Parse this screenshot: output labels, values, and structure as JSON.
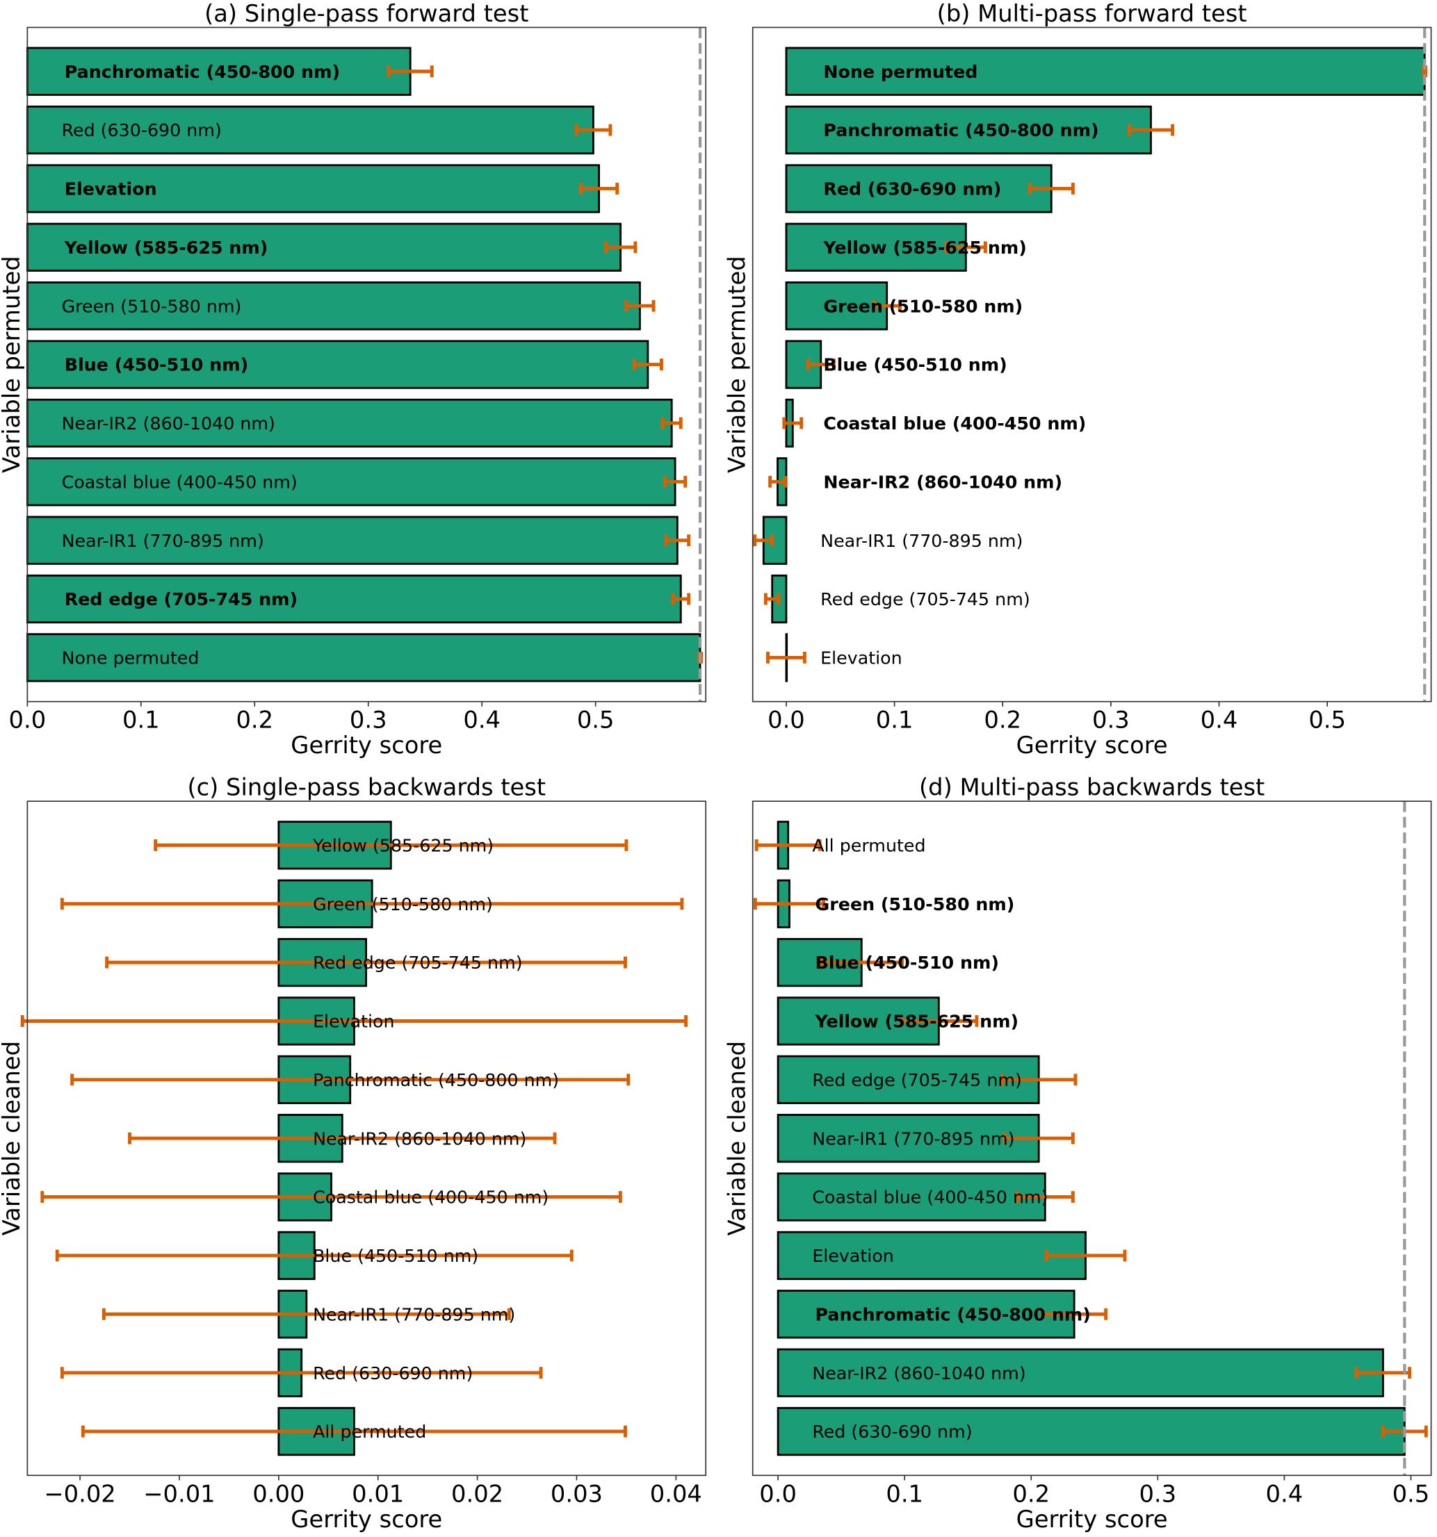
{
  "colors": {
    "bar": "#1b9e77",
    "error": "#d95f02",
    "reference": "#999999",
    "edge": "#000000"
  },
  "chart_data": [
    {
      "type": "bar",
      "orientation": "horizontal",
      "title": "(a) Single-pass forward test",
      "xlabel": "Gerrity score",
      "ylabel": "Variable permuted",
      "xlim": [
        0.0,
        0.597
      ],
      "reference_line": 0.592,
      "xticks": [
        0.0,
        0.1,
        0.2,
        0.3,
        0.4,
        0.5
      ],
      "xtick_labels": [
        "0.0",
        "0.1",
        "0.2",
        "0.3",
        "0.4",
        "0.5"
      ],
      "bars": [
        {
          "label": "Panchromatic (450-800 nm)",
          "value": 0.337,
          "err": 0.019,
          "bold": true
        },
        {
          "label": "Red (630-690 nm)",
          "value": 0.498,
          "err": 0.015,
          "bold": false
        },
        {
          "label": "Elevation",
          "value": 0.503,
          "err": 0.016,
          "bold": true
        },
        {
          "label": "Yellow (585-625 nm)",
          "value": 0.522,
          "err": 0.013,
          "bold": true
        },
        {
          "label": "Green (510-580 nm)",
          "value": 0.539,
          "err": 0.012,
          "bold": false
        },
        {
          "label": "Blue (450-510 nm)",
          "value": 0.546,
          "err": 0.012,
          "bold": true
        },
        {
          "label": "Near-IR2 (860-1040 nm)",
          "value": 0.567,
          "err": 0.008,
          "bold": false
        },
        {
          "label": "Coastal blue (400-450 nm)",
          "value": 0.57,
          "err": 0.009,
          "bold": false
        },
        {
          "label": "Near-IR1 (770-895 nm)",
          "value": 0.572,
          "err": 0.01,
          "bold": false
        },
        {
          "label": "Red edge (705-745 nm)",
          "value": 0.575,
          "err": 0.007,
          "bold": true
        },
        {
          "label": "None permuted",
          "value": 0.592,
          "err": 0.001,
          "bold": false
        }
      ]
    },
    {
      "type": "bar",
      "orientation": "horizontal",
      "title": "(b) Multi-pass forward test",
      "xlabel": "Gerrity score",
      "ylabel": "Variable permuted",
      "xlim": [
        -0.031,
        0.596
      ],
      "reference_line": 0.59,
      "xticks": [
        0.0,
        0.1,
        0.2,
        0.3,
        0.4,
        0.5
      ],
      "xtick_labels": [
        "0.0",
        "0.1",
        "0.2",
        "0.3",
        "0.4",
        "0.5"
      ],
      "bars": [
        {
          "label": "None permuted",
          "value": 0.59,
          "err": 0.001,
          "bold": true
        },
        {
          "label": "Panchromatic (450-800 nm)",
          "value": 0.337,
          "err": 0.02,
          "bold": true
        },
        {
          "label": "Red (630-690 nm)",
          "value": 0.245,
          "err": 0.02,
          "bold": true
        },
        {
          "label": "Yellow (585-625 nm)",
          "value": 0.166,
          "err": 0.018,
          "bold": true
        },
        {
          "label": "Green (510-580 nm)",
          "value": 0.093,
          "err": 0.012,
          "bold": true
        },
        {
          "label": "Blue (450-510 nm)",
          "value": 0.032,
          "err": 0.012,
          "bold": true
        },
        {
          "label": "Coastal blue (400-450 nm)",
          "value": 0.006,
          "err": 0.008,
          "bold": true
        },
        {
          "label": "Near-IR2 (860-1040 nm)",
          "value": -0.008,
          "err": 0.007,
          "bold": true
        },
        {
          "label": "Near-IR1 (770-895 nm)",
          "value": -0.021,
          "err": 0.008,
          "bold": false
        },
        {
          "label": "Red edge (705-745 nm)",
          "value": -0.013,
          "err": 0.006,
          "bold": false
        },
        {
          "label": "Elevation",
          "value": 0.0,
          "err": 0.017,
          "bold": false
        }
      ]
    },
    {
      "type": "bar",
      "orientation": "horizontal",
      "title": "(c) Single-pass backwards test",
      "xlabel": "Gerrity score",
      "ylabel": "Variable cleaned",
      "xlim": [
        -0.0253,
        0.043
      ],
      "reference_line": null,
      "xticks": [
        -0.02,
        -0.01,
        0.0,
        0.01,
        0.02,
        0.03,
        0.04
      ],
      "xtick_labels": [
        "−0.02",
        "−0.01",
        "0.00",
        "0.01",
        "0.02",
        "0.03",
        "0.04"
      ],
      "bars": [
        {
          "label": "Yellow (585-625 nm)",
          "value": 0.0113,
          "err": 0.0237,
          "bold": false
        },
        {
          "label": "Green (510-580 nm)",
          "value": 0.0094,
          "err": 0.0312,
          "bold": false
        },
        {
          "label": "Red edge (705-745 nm)",
          "value": 0.0088,
          "err": 0.0261,
          "bold": false
        },
        {
          "label": "Elevation",
          "value": 0.0076,
          "err": 0.0334,
          "bold": false
        },
        {
          "label": "Panchromatic (450-800 nm)",
          "value": 0.0072,
          "err": 0.028,
          "bold": false
        },
        {
          "label": "Near-IR2 (860-1040 nm)",
          "value": 0.0064,
          "err": 0.0214,
          "bold": false
        },
        {
          "label": "Coastal blue (400-450 nm)",
          "value": 0.0053,
          "err": 0.0291,
          "bold": false
        },
        {
          "label": "Blue (450-510 nm)",
          "value": 0.0036,
          "err": 0.0259,
          "bold": false
        },
        {
          "label": "Near-IR1 (770-895 nm)",
          "value": 0.0028,
          "err": 0.0204,
          "bold": false
        },
        {
          "label": "Red (630-690 nm)",
          "value": 0.0023,
          "err": 0.0241,
          "bold": false
        },
        {
          "label": "All permuted",
          "value": 0.0076,
          "err": 0.0273,
          "bold": false
        }
      ]
    },
    {
      "type": "bar",
      "orientation": "horizontal",
      "title": "(d) Multi-pass backwards test",
      "xlabel": "Gerrity score",
      "ylabel": "Variable cleaned",
      "xlim": [
        -0.02,
        0.516
      ],
      "reference_line": 0.495,
      "xticks": [
        0.0,
        0.1,
        0.2,
        0.3,
        0.4,
        0.5
      ],
      "xtick_labels": [
        "0.0",
        "0.1",
        "0.2",
        "0.3",
        "0.4",
        "0.5"
      ],
      "bars": [
        {
          "label": "All permuted",
          "value": 0.008,
          "err": 0.025,
          "bold": false
        },
        {
          "label": "Green (510-580 nm)",
          "value": 0.009,
          "err": 0.027,
          "bold": true
        },
        {
          "label": "Blue (450-510 nm)",
          "value": 0.066,
          "err": 0.032,
          "bold": true
        },
        {
          "label": "Yellow (585-625 nm)",
          "value": 0.127,
          "err": 0.03,
          "bold": true
        },
        {
          "label": "Red edge (705-745 nm)",
          "value": 0.206,
          "err": 0.029,
          "bold": false
        },
        {
          "label": "Near-IR1 (770-895 nm)",
          "value": 0.206,
          "err": 0.027,
          "bold": false
        },
        {
          "label": "Coastal blue (400-450 nm)",
          "value": 0.211,
          "err": 0.022,
          "bold": false
        },
        {
          "label": "Elevation",
          "value": 0.243,
          "err": 0.031,
          "bold": false
        },
        {
          "label": "Panchromatic (450-800 nm)",
          "value": 0.234,
          "err": 0.025,
          "bold": true
        },
        {
          "label": "Near-IR2 (860-1040 nm)",
          "value": 0.478,
          "err": 0.021,
          "bold": false
        },
        {
          "label": "Red (630-690 nm)",
          "value": 0.495,
          "err": 0.017,
          "bold": false
        }
      ]
    }
  ]
}
